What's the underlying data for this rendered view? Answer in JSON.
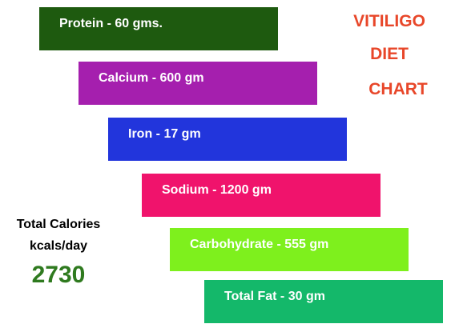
{
  "title": [
    "VITILIGO",
    "DIET",
    "CHART"
  ],
  "items": [
    {
      "label": "Protein - 60 gms.",
      "color": "#1e5a0f"
    },
    {
      "label": "Calcium - 600 gm",
      "color": "#a51fae"
    },
    {
      "label": "Iron - 17 gm",
      "color": "#2235dc"
    },
    {
      "label": "Sodium - 1200 gm",
      "color": "#f0136c"
    },
    {
      "label": "Carbohydrate - 555 gm",
      "color": "#7ef01d"
    },
    {
      "label": "Total Fat - 30 gm",
      "color": "#14b86a"
    }
  ],
  "calories": {
    "label": "Total Calories",
    "unit": "kcals/day",
    "value": "2730"
  }
}
